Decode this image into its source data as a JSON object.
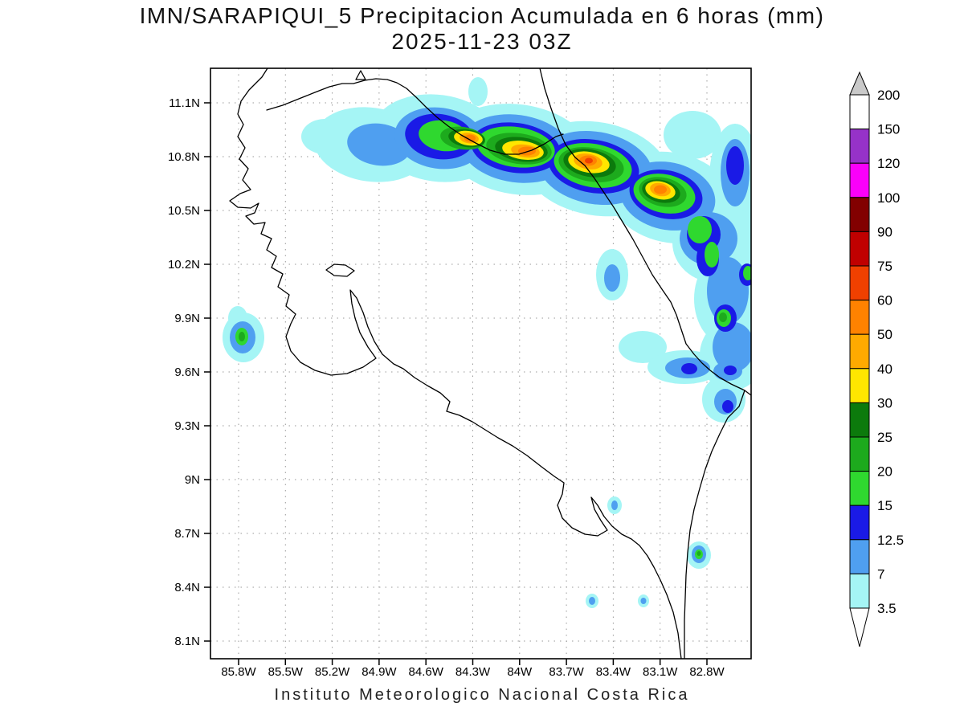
{
  "title": {
    "line1": "IMN/SARAPIQUI_5 Precipitacion Acumulada en 6 horas (mm)",
    "line2": "2025-11-23 03Z"
  },
  "footer": "Instituto Meteorologico Nacional Costa Rica",
  "map": {
    "x_axis": {
      "tick_labels": [
        "85.8W",
        "85.5W",
        "85.2W",
        "84.9W",
        "84.6W",
        "84.3W",
        "84W",
        "83.7W",
        "83.4W",
        "83.1W",
        "82.8W"
      ]
    },
    "y_axis": {
      "tick_labels": [
        "11.1N",
        "10.8N",
        "10.5N",
        "10.2N",
        "9.9N",
        "9.6N",
        "9.3N",
        "9N",
        "8.7N",
        "8.4N",
        "8.1N"
      ]
    }
  },
  "colorbar": {
    "units": "mm",
    "tick_labels": [
      "200",
      "150",
      "120",
      "100",
      "90",
      "75",
      "60",
      "50",
      "40",
      "30",
      "25",
      "20",
      "15",
      "12.5",
      "7",
      "3.5"
    ],
    "segment_colors": [
      "#ffffff",
      "#9632c8",
      "#fa00fa",
      "#820000",
      "#c00000",
      "#f04000",
      "#ff8200",
      "#ffaa00",
      "#ffe600",
      "#0c7a0c",
      "#1daa1d",
      "#2fd82f",
      "#1a1ae6",
      "#4f9ff0",
      "#a5f5f5"
    ],
    "cap_top_color": "#c9c9c9",
    "cap_bottom_color": "#ffffff"
  },
  "palette": {
    "lv3_5": "#a5f5f5",
    "lv7": "#4f9ff0",
    "lv12_5": "#1a1ae6",
    "lv15": "#2fd82f",
    "lv20": "#1daa1d",
    "lv25": "#0c7a0c",
    "lv30": "#ffe600",
    "lv40": "#ffaa00",
    "lv50": "#ff8200",
    "lv60": "#f04000"
  },
  "chart_data": {
    "type": "filled-contour-map",
    "title": "IMN/SARAPIQUI_5 Precipitacion Acumulada en 6 horas (mm)",
    "valid_time": "2025-11-23 03Z",
    "region": "Costa Rica",
    "contour_levels_mm": [
      3.5,
      7,
      12.5,
      15,
      20,
      25,
      30,
      40,
      50,
      60,
      75,
      90,
      100,
      120,
      150,
      200
    ],
    "x_ticks_longitude_w": [
      85.8,
      85.5,
      85.2,
      84.9,
      84.6,
      84.3,
      84.0,
      83.7,
      83.4,
      83.1,
      82.8
    ],
    "y_ticks_latitude_n": [
      11.1,
      10.8,
      10.5,
      10.2,
      9.9,
      9.6,
      9.3,
      9.0,
      8.7,
      8.4,
      8.1
    ],
    "legend_position": "right",
    "grid": "dotted",
    "max_shaded_band_mm": "60-75"
  }
}
